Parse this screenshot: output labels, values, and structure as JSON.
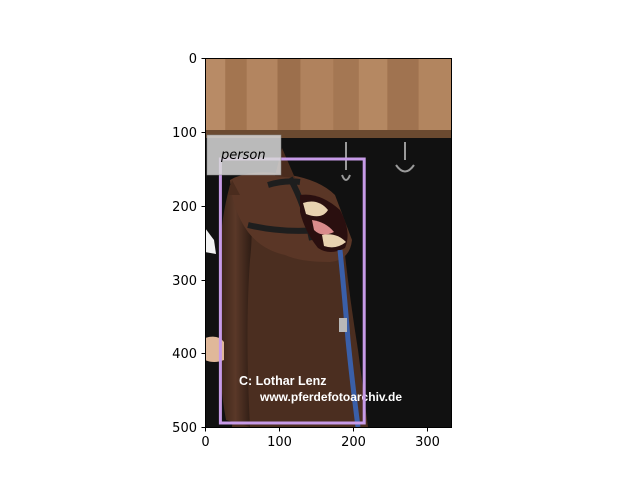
{
  "axes": {
    "x_ticks": [
      "0",
      "100",
      "200",
      "300"
    ],
    "y_ticks": [
      "0",
      "100",
      "200",
      "300",
      "400",
      "500"
    ]
  },
  "detection": {
    "label": "person",
    "box_color": "#c79be8"
  },
  "photo": {
    "subject": "horse with open mouth showing teeth, wearing halter and blue lead rope, under a wooden stable roof",
    "caption_line1": "C:  Lothar Lenz",
    "caption_line2": "www.pferdefotoarchiv.de"
  }
}
